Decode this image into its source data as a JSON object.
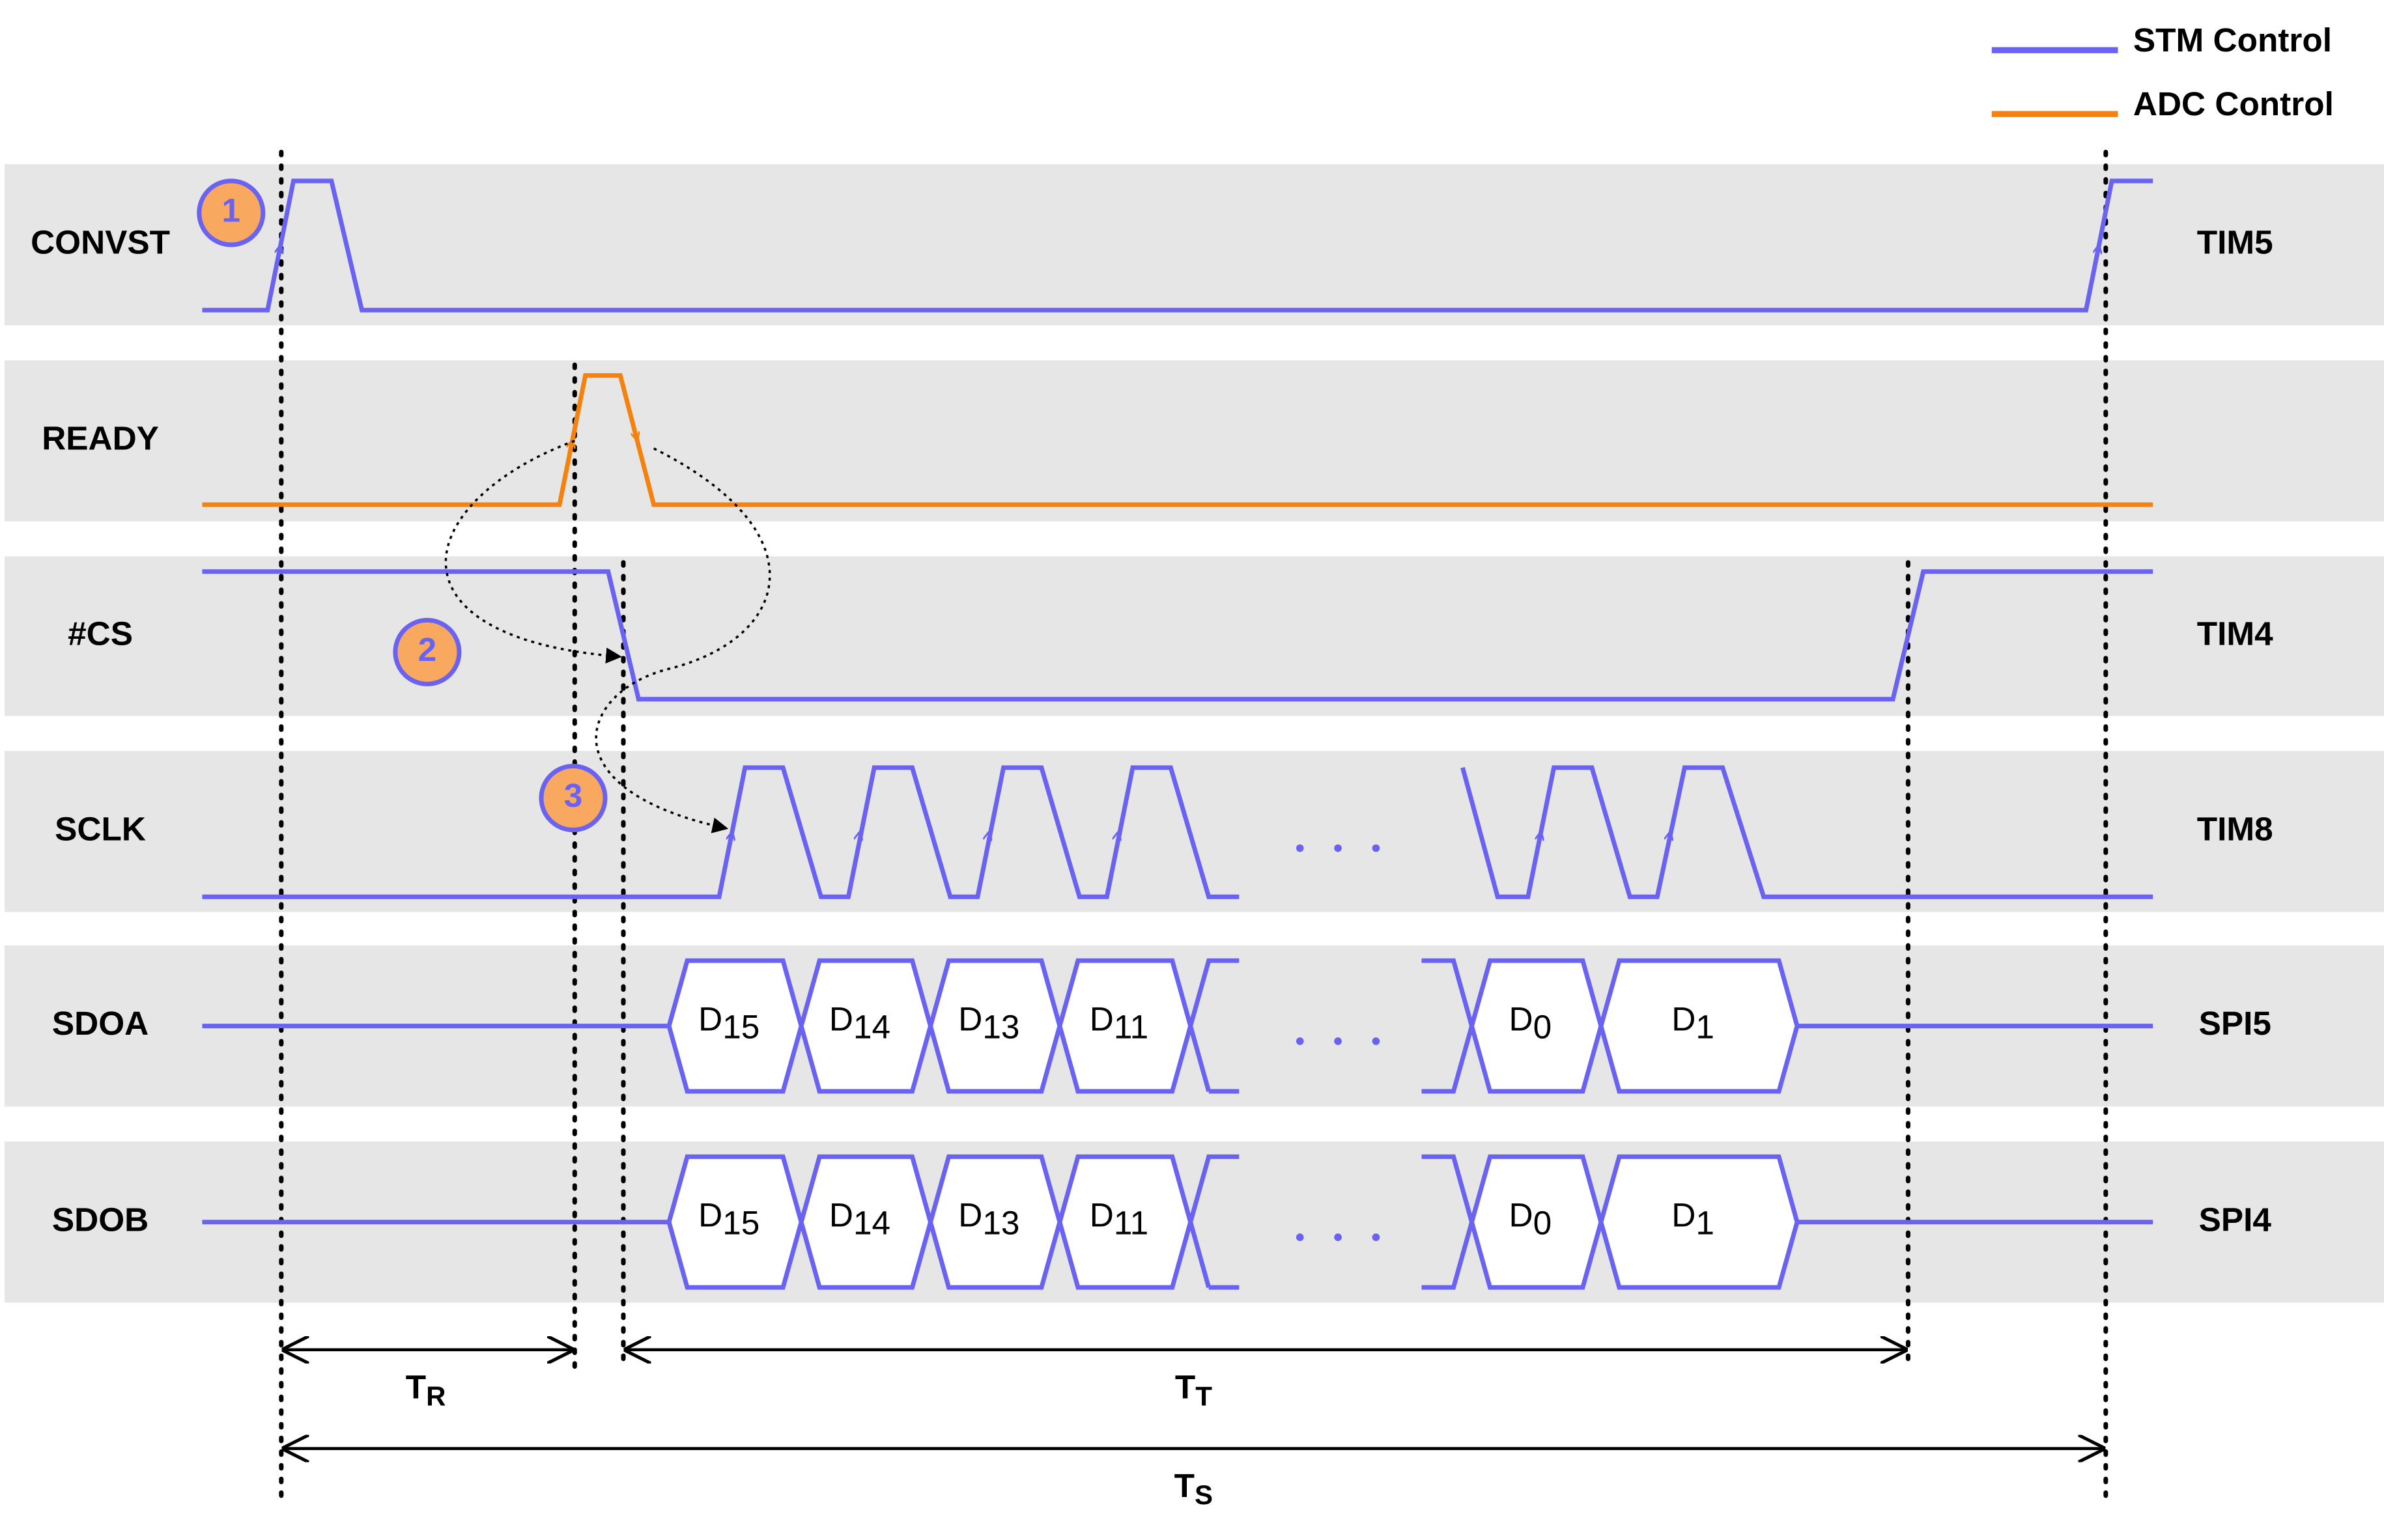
{
  "legend": [
    {
      "label": "STM Control",
      "color": "#6a62f2"
    },
    {
      "label": "ADC Control",
      "color": "#f5820f"
    }
  ],
  "signals": [
    {
      "label": "CONVST",
      "peripheral": "TIM5"
    },
    {
      "label": "READY"
    },
    {
      "label": "#CS",
      "peripheral": "TIM4"
    },
    {
      "label": "SCLK",
      "peripheral": "TIM8"
    },
    {
      "label": "SDOA",
      "peripheral": "SPI5",
      "data": [
        {
          "main": "D",
          "sub": "15"
        },
        {
          "main": "D",
          "sub": "14"
        },
        {
          "main": "D",
          "sub": "13"
        },
        {
          "main": "D",
          "sub": "11"
        },
        {
          "main": "D",
          "sub": "0"
        },
        {
          "main": "D",
          "sub": "1"
        }
      ]
    },
    {
      "label": "SDOB",
      "peripheral": "SPI4",
      "data": [
        {
          "main": "D",
          "sub": "15"
        },
        {
          "main": "D",
          "sub": "14"
        },
        {
          "main": "D",
          "sub": "13"
        },
        {
          "main": "D",
          "sub": "11"
        },
        {
          "main": "D",
          "sub": "0"
        },
        {
          "main": "D",
          "sub": "1"
        }
      ]
    }
  ],
  "steps": [
    "1",
    "2",
    "3"
  ],
  "intervals": [
    {
      "main": "T",
      "sub": "R"
    },
    {
      "main": "T",
      "sub": "T"
    },
    {
      "main": "T",
      "sub": "S"
    }
  ]
}
